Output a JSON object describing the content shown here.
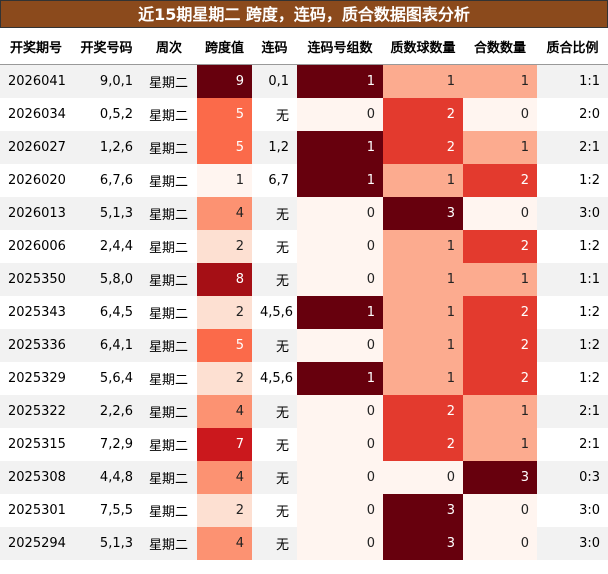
{
  "header": {
    "title": "近15期星期二 跨度，连码，质合数据图表分析"
  },
  "table": {
    "columns": [
      "开奖期号",
      "开奖号码",
      "周次",
      "跨度值",
      "连码",
      "连码号组数",
      "质数球数量",
      "合数数量",
      "质合比例"
    ],
    "heat_columns": {
      "3": [
        "#fff5f0",
        "#fff5f0",
        "#fde0d2",
        "#fcbba1",
        "#fc9272",
        "#fb6a4a",
        "#ef3b2c",
        "#cb181d",
        "#a50f15",
        "#67000d"
      ],
      "5": [
        "#fff5f0",
        "#67000d"
      ],
      "6": [
        "#fff5f0",
        "#fcab8f",
        "#e33a2e",
        "#67000d"
      ],
      "7": [
        "#fff5f0",
        "#fcab8f",
        "#e33a2e",
        "#67000d"
      ]
    },
    "rows": [
      [
        "2026041",
        "9,0,1",
        "星期二",
        "9",
        "0,1",
        "1",
        "1",
        "1",
        "1:1"
      ],
      [
        "2026034",
        "0,5,2",
        "星期二",
        "5",
        "无",
        "0",
        "2",
        "0",
        "2:0"
      ],
      [
        "2026027",
        "1,2,6",
        "星期二",
        "5",
        "1,2",
        "1",
        "2",
        "1",
        "2:1"
      ],
      [
        "2026020",
        "6,7,6",
        "星期二",
        "1",
        "6,7",
        "1",
        "1",
        "2",
        "1:2"
      ],
      [
        "2026013",
        "5,1,3",
        "星期二",
        "4",
        "无",
        "0",
        "3",
        "0",
        "3:0"
      ],
      [
        "2026006",
        "2,4,4",
        "星期二",
        "2",
        "无",
        "0",
        "1",
        "2",
        "1:2"
      ],
      [
        "2025350",
        "5,8,0",
        "星期二",
        "8",
        "无",
        "0",
        "1",
        "1",
        "1:1"
      ],
      [
        "2025343",
        "6,4,5",
        "星期二",
        "2",
        "4,5,6",
        "1",
        "1",
        "2",
        "1:2"
      ],
      [
        "2025336",
        "6,4,1",
        "星期二",
        "5",
        "无",
        "0",
        "1",
        "2",
        "1:2"
      ],
      [
        "2025329",
        "5,6,4",
        "星期二",
        "2",
        "4,5,6",
        "1",
        "1",
        "2",
        "1:2"
      ],
      [
        "2025322",
        "2,2,6",
        "星期二",
        "4",
        "无",
        "0",
        "2",
        "1",
        "2:1"
      ],
      [
        "2025315",
        "7,2,9",
        "星期二",
        "7",
        "无",
        "0",
        "2",
        "1",
        "2:1"
      ],
      [
        "2025308",
        "4,4,8",
        "星期二",
        "4",
        "无",
        "0",
        "0",
        "3",
        "0:3"
      ],
      [
        "2025301",
        "7,5,5",
        "星期二",
        "2",
        "无",
        "0",
        "3",
        "0",
        "3:0"
      ],
      [
        "2025294",
        "5,1,3",
        "星期二",
        "4",
        "无",
        "0",
        "3",
        "0",
        "3:0"
      ]
    ]
  }
}
